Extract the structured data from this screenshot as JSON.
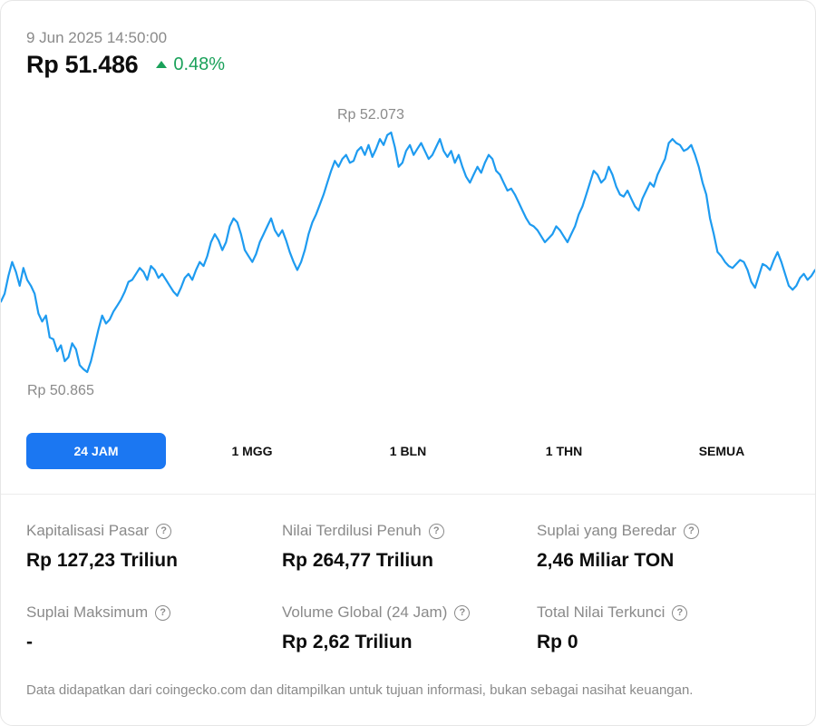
{
  "header": {
    "timestamp": "9 Jun 2025 14:50:00",
    "price": "Rp 51.486",
    "change": "0.48%",
    "change_color": "#1aa15a"
  },
  "chart_data": {
    "type": "line",
    "high_label": "Rp 52.073",
    "low_label": "Rp 50.865",
    "ylim": [
      50865,
      52073
    ],
    "line_color": "#1e9bf0",
    "grid": false,
    "series": [
      {
        "values": [
          51220,
          51260,
          51350,
          51420,
          51370,
          51300,
          51390,
          51330,
          51300,
          51260,
          51160,
          51120,
          51150,
          51040,
          51030,
          50970,
          51000,
          50920,
          50940,
          51010,
          50980,
          50900,
          50880,
          50865,
          50920,
          51000,
          51080,
          51150,
          51110,
          51130,
          51170,
          51200,
          51230,
          51270,
          51320,
          51330,
          51360,
          51390,
          51370,
          51330,
          51400,
          51380,
          51340,
          51360,
          51330,
          51300,
          51270,
          51250,
          51290,
          51340,
          51360,
          51330,
          51380,
          51420,
          51400,
          51450,
          51520,
          51560,
          51530,
          51480,
          51520,
          51600,
          51640,
          51620,
          51560,
          51480,
          51450,
          51420,
          51460,
          51520,
          51560,
          51600,
          51640,
          51580,
          51550,
          51580,
          51530,
          51470,
          51420,
          51380,
          51420,
          51480,
          51560,
          51620,
          51660,
          51710,
          51760,
          51820,
          51880,
          51930,
          51900,
          51940,
          51960,
          51920,
          51930,
          51980,
          52000,
          51960,
          52010,
          51950,
          51990,
          52040,
          52010,
          52060,
          52073,
          52000,
          51900,
          51920,
          51980,
          52010,
          51960,
          51990,
          52020,
          51980,
          51940,
          51960,
          52000,
          52040,
          51980,
          51950,
          51980,
          51920,
          51960,
          51900,
          51850,
          51820,
          51860,
          51900,
          51870,
          51920,
          51960,
          51940,
          51880,
          51860,
          51820,
          51780,
          51790,
          51760,
          51720,
          51680,
          51640,
          51610,
          51600,
          51580,
          51550,
          51520,
          51540,
          51560,
          51600,
          51580,
          51550,
          51520,
          51560,
          51600,
          51660,
          51700,
          51760,
          51820,
          51880,
          51860,
          51820,
          51840,
          51900,
          51860,
          51800,
          51760,
          51750,
          51780,
          51740,
          51700,
          51680,
          51740,
          51780,
          51820,
          51800,
          51860,
          51900,
          51940,
          52020,
          52040,
          52020,
          52010,
          51980,
          51990,
          52010,
          51960,
          51900,
          51820,
          51760,
          51640,
          51560,
          51470,
          51450,
          51420,
          51400,
          51390,
          51410,
          51430,
          51420,
          51380,
          51320,
          51290,
          51350,
          51410,
          51400,
          51380,
          51430,
          51470,
          51420,
          51360,
          51300,
          51280,
          51300,
          51340,
          51360,
          51330,
          51350,
          51380
        ]
      }
    ]
  },
  "tabs": [
    {
      "label": "24 JAM",
      "active": true
    },
    {
      "label": "1 MGG",
      "active": false
    },
    {
      "label": "1 BLN",
      "active": false
    },
    {
      "label": "1 THN",
      "active": false
    },
    {
      "label": "SEMUA",
      "active": false
    }
  ],
  "stats": [
    {
      "label": "Kapitalisasi Pasar",
      "value": "Rp 127,23 Triliun",
      "icon": "help-circle-icon"
    },
    {
      "label": "Nilai Terdilusi Penuh",
      "value": "Rp 264,77 Triliun",
      "icon": "help-circle-icon"
    },
    {
      "label": "Suplai yang Beredar",
      "value": "2,46 Miliar TON",
      "icon": "help-circle-icon"
    },
    {
      "label": "Suplai Maksimum",
      "value": "-",
      "icon": "help-circle-icon"
    },
    {
      "label": "Volume Global (24 Jam)",
      "value": "Rp 2,62 Triliun",
      "icon": "help-circle-icon"
    },
    {
      "label": "Total Nilai Terkunci",
      "value": "Rp 0",
      "icon": "help-circle-icon"
    }
  ],
  "help_glyph": "?",
  "disclaimer": "Data didapatkan dari coingecko.com dan ditampilkan untuk tujuan informasi, bukan sebagai nasihat keuangan.",
  "colors": {
    "accent": "#1b77f2",
    "positive": "#1aa15a",
    "muted_text": "#8a8a8a"
  }
}
